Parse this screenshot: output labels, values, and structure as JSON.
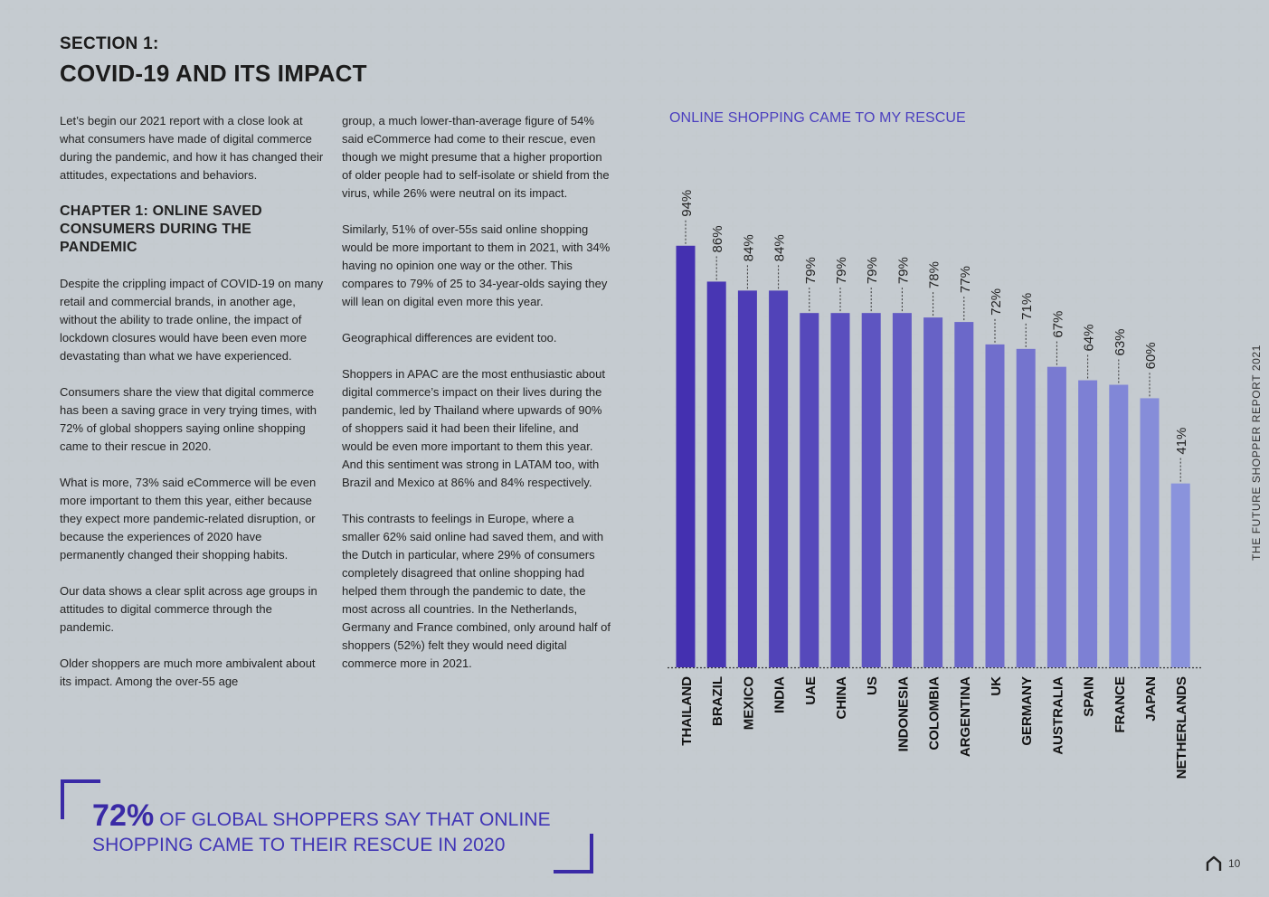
{
  "section": {
    "label": "SECTION 1:",
    "title": "COVID-19 AND ITS IMPACT"
  },
  "col1": {
    "p1": "Let’s begin our 2021 report with a close look at what consumers have made of digital commerce during the pandemic, and how it has changed their attitudes, expectations and behaviors.",
    "chapter": "CHAPTER 1: ONLINE SAVED CONSUMERS DURING THE PANDEMIC",
    "p2": "Despite the crippling impact of COVID-19 on many retail and commercial brands, in another age, without the ability to trade online, the impact of lockdown closures would have been even more devastating than what we have experienced.",
    "p3": "Consumers share the view that digital commerce has been a saving grace in very trying times, with 72% of global shoppers saying online shopping came to their rescue in 2020.",
    "p4": "What is more, 73% said eCommerce will be even more important to them this year, either because they expect more pandemic-related disruption, or because the experiences of 2020 have permanently changed their shopping habits.",
    "p5": "Our data shows a clear split across age groups in attitudes to digital commerce through the pandemic.",
    "p6": "Older shoppers are much more ambivalent about its impact. Among the over-55 age"
  },
  "col2": {
    "p1": "group, a much lower-than-average figure of 54% said eCommerce had come to their rescue, even though we might presume that a higher proportion of older people had to self-isolate or shield from the virus, while 26% were neutral on its impact.",
    "p2": "Similarly, 51% of over-55s said online shopping would be more important to them in 2021, with 34% having no opinion one way or the other. This compares to 79% of 25 to 34-year-olds saying they will lean on digital even more this year.",
    "p3": "Geographical differences are evident too.",
    "p4": "Shoppers in APAC are the most enthusiastic about digital commerce’s impact on their lives during the pandemic, led by Thailand where upwards of 90% of shoppers said it had been their lifeline, and would be even more important to them this year. And this sentiment was strong in LATAM too, with Brazil and Mexico at 86% and 84% respectively.",
    "p5": "This contrasts to feelings in Europe, where a smaller 62% said online had saved them, and with the Dutch in particular, where 29% of consumers completely disagreed that online shopping had helped them through the pandemic to date, the most across all countries. In the Netherlands, Germany and France combined, only around half of shoppers (52%) felt they would need digital commerce more in 2021."
  },
  "quote": {
    "big": "72%",
    "rest": " OF GLOBAL SHOPPERS SAY THAT ONLINE SHOPPING CAME TO THEIR RESCUE IN 2020"
  },
  "side_label": "THE FUTURE SHOPPER REPORT 2021",
  "footer": {
    "page_number": "10",
    "icon": "home-icon"
  },
  "colors": {
    "accent": "#3a2aa6",
    "bar_dark": "#4430b0",
    "bar_light": "#8a93dc",
    "chart_title": "#4b3fbf"
  },
  "chart_data": {
    "type": "bar",
    "title": "ONLINE SHOPPING CAME TO MY RESCUE",
    "categories": [
      "THAILAND",
      "BRAZIL",
      "MEXICO",
      "INDIA",
      "UAE",
      "CHINA",
      "US",
      "INDONESIA",
      "COLOMBIA",
      "ARGENTINA",
      "UK",
      "GERMANY",
      "AUSTRALIA",
      "SPAIN",
      "FRANCE",
      "JAPAN",
      "NETHERLANDS"
    ],
    "values": [
      94,
      86,
      84,
      84,
      79,
      79,
      79,
      79,
      78,
      77,
      72,
      71,
      67,
      64,
      63,
      60,
      41
    ],
    "labels": [
      "94%",
      "86%",
      "84%",
      "84%",
      "79%",
      "79%",
      "79%",
      "79%",
      "78%",
      "77%",
      "72%",
      "71%",
      "67%",
      "64%",
      "63%",
      "60%",
      "41%"
    ],
    "ylim": [
      0,
      100
    ],
    "grid": false,
    "legend": "none"
  }
}
